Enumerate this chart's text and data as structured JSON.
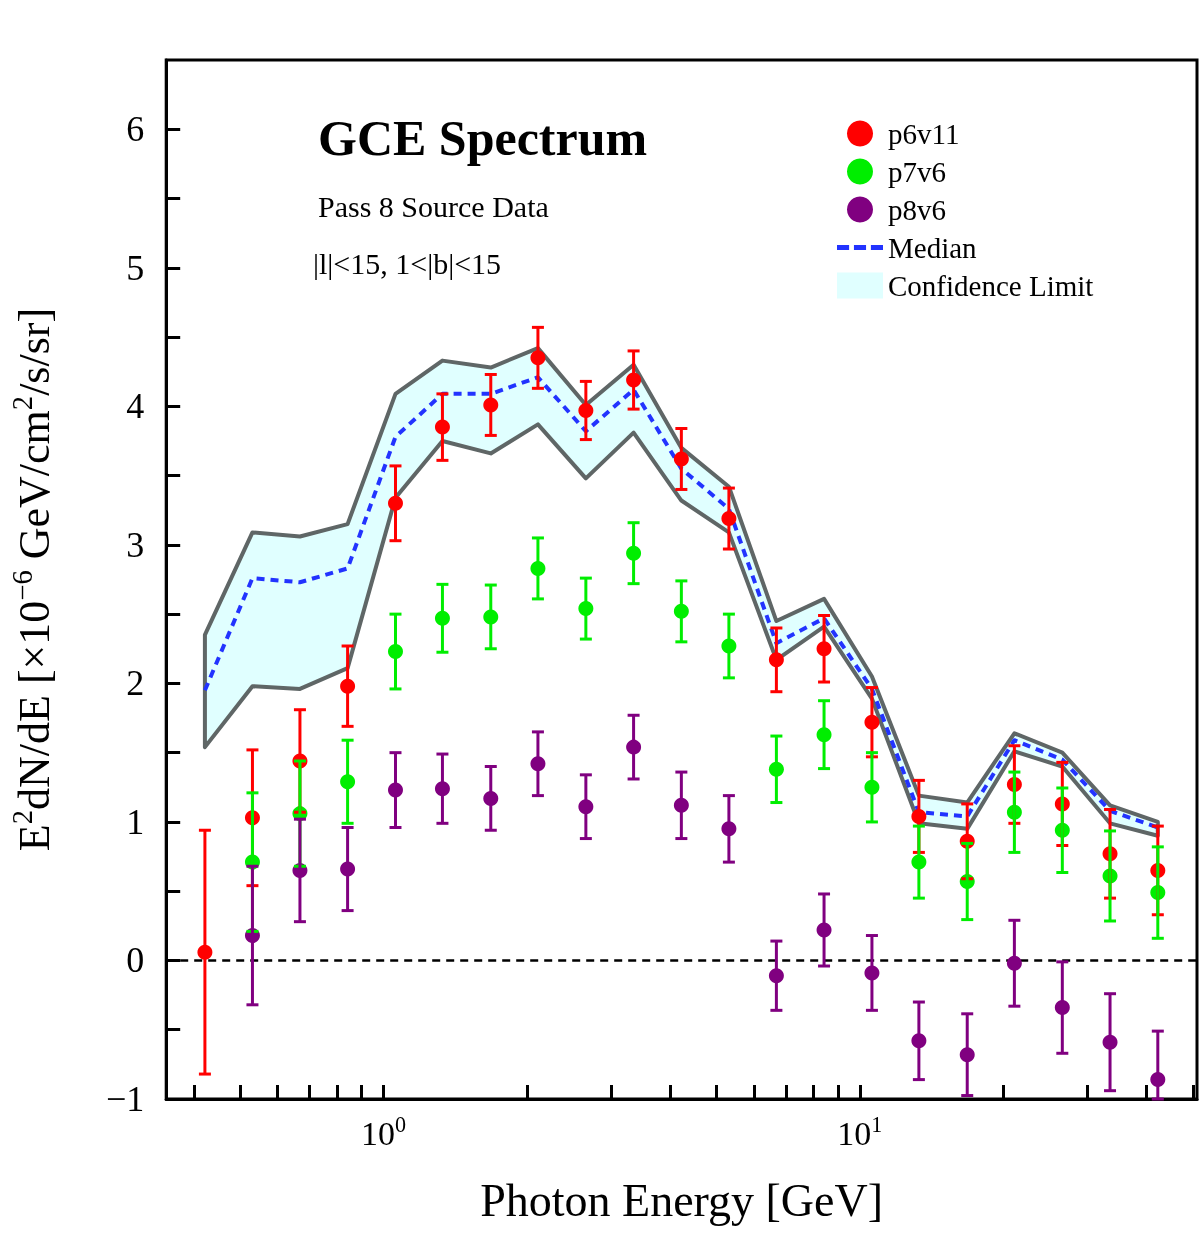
{
  "chart_data": {
    "type": "scatter",
    "title": "GCE Spectrum",
    "subtitle": "Pass 8 Source Data",
    "annotations": [
      "|l|<15, 1<|b|<15",
      "Confidence Limit"
    ],
    "xlabel": "Photon Energy [GeV]",
    "ylabel": "E$^{2}$dN/dE [×10$^{−6}$ GeV/cm$^{2}$/s/sr]",
    "x": [
      0.422,
      0.531,
      0.668,
      0.841,
      1.06,
      1.33,
      1.68,
      2.11,
      2.66,
      3.35,
      4.22,
      5.31,
      6.68,
      8.41,
      10.6,
      13.3,
      16.8,
      21.1,
      26.6,
      33.5,
      42.2
    ],
    "log": "x",
    "xlim": [
      0.35,
      51
    ],
    "ylim": [
      -1,
      6.5
    ],
    "xticks": [
      {
        "value": 0.4,
        "label": null
      },
      {
        "value": 0.5,
        "label": null
      },
      {
        "value": 0.6,
        "label": null
      },
      {
        "value": 0.7,
        "label": null
      },
      {
        "value": 0.8,
        "label": null
      },
      {
        "value": 0.9,
        "label": null
      },
      {
        "value": 1,
        "label": "10$^{0}$"
      },
      {
        "value": 2,
        "label": null
      },
      {
        "value": 3,
        "label": null
      },
      {
        "value": 4,
        "label": null
      },
      {
        "value": 5,
        "label": null
      },
      {
        "value": 6,
        "label": null
      },
      {
        "value": 7,
        "label": null
      },
      {
        "value": 8,
        "label": null
      },
      {
        "value": 9,
        "label": null
      },
      {
        "value": 10,
        "label": "10$^{1}$"
      },
      {
        "value": 20,
        "label": null
      },
      {
        "value": 30,
        "label": null
      },
      {
        "value": 40,
        "label": null
      },
      {
        "value": 50,
        "label": null
      }
    ],
    "yticks": [
      -1,
      {
        "value": -0.5,
        "label": null
      },
      0,
      {
        "value": 0.5,
        "label": null
      },
      1,
      {
        "value": 1.5,
        "label": null
      },
      2,
      {
        "value": 2.5,
        "label": null
      },
      3,
      {
        "value": 3.5,
        "label": null
      },
      4,
      {
        "value": 4.5,
        "label": null
      },
      5,
      {
        "value": 5.5,
        "label": null
      },
      6
    ],
    "grid": false,
    "legend": "top right",
    "ref_lines": [
      {
        "axis": "y",
        "value": 0,
        "color": "#000000",
        "line_style": "dashed"
      }
    ],
    "series": [
      {
        "name": "Median",
        "type": "line",
        "color": "#2233ff",
        "line_style": "dashed",
        "marker": "none",
        "values": [
          1.95,
          2.76,
          2.73,
          2.83,
          3.78,
          4.09,
          4.09,
          4.21,
          3.82,
          4.12,
          3.55,
          3.26,
          2.29,
          2.47,
          1.96,
          1.07,
          1.04,
          1.59,
          1.45,
          1.08,
          0.96
        ],
        "lower": [
          1.54,
          1.98,
          1.96,
          2.11,
          3.34,
          3.75,
          3.66,
          3.87,
          3.48,
          3.81,
          3.32,
          3.09,
          2.17,
          2.41,
          1.89,
          0.99,
          0.95,
          1.51,
          1.4,
          0.99,
          0.9
        ],
        "upper": [
          2.35,
          3.09,
          3.06,
          3.15,
          4.09,
          4.33,
          4.28,
          4.42,
          4.01,
          4.3,
          3.7,
          3.42,
          2.45,
          2.61,
          2.05,
          1.19,
          1.14,
          1.64,
          1.5,
          1.12,
          1.0
        ]
      },
      {
        "name": "p6v11",
        "color": "#ff0000",
        "marker": "circle",
        "values": [
          0.06,
          1.03,
          1.44,
          1.98,
          3.3,
          3.85,
          4.01,
          4.35,
          3.97,
          4.19,
          3.62,
          3.19,
          2.17,
          2.25,
          1.72,
          1.04,
          0.86,
          1.27,
          1.13,
          0.77,
          0.65
        ],
        "errors": [
          0.88,
          0.49,
          0.37,
          0.29,
          0.27,
          0.24,
          0.22,
          0.22,
          0.21,
          0.21,
          0.22,
          0.22,
          0.23,
          0.24,
          0.25,
          0.26,
          0.27,
          0.28,
          0.3,
          0.32,
          0.32
        ]
      },
      {
        "name": "p7v6",
        "color": "#00ee00",
        "marker": "circle",
        "values": [
          null,
          0.71,
          1.06,
          1.29,
          2.23,
          2.47,
          2.48,
          2.83,
          2.54,
          2.94,
          2.52,
          2.27,
          1.38,
          1.63,
          1.25,
          0.71,
          0.57,
          1.07,
          0.94,
          0.61,
          0.49
        ],
        "errors": [
          null,
          0.5,
          0.38,
          0.3,
          0.27,
          0.245,
          0.23,
          0.22,
          0.22,
          0.22,
          0.22,
          0.23,
          0.24,
          0.245,
          0.25,
          0.26,
          0.275,
          0.29,
          0.305,
          0.325,
          0.33
        ]
      },
      {
        "name": "p8v6",
        "color": "#800080",
        "marker": "circle",
        "values": [
          null,
          0.18,
          0.65,
          0.66,
          1.23,
          1.24,
          1.17,
          1.42,
          1.11,
          1.54,
          1.12,
          0.95,
          -0.11,
          0.22,
          -0.09,
          -0.58,
          -0.68,
          -0.02,
          -0.34,
          -0.59,
          -0.86
        ],
        "errors": [
          null,
          0.5,
          0.37,
          0.3,
          0.27,
          0.25,
          0.23,
          0.23,
          0.23,
          0.23,
          0.24,
          0.24,
          0.25,
          0.26,
          0.27,
          0.28,
          0.295,
          0.31,
          0.33,
          0.35,
          [
            -1.0,
            -0.51
          ]
        ]
      }
    ]
  }
}
